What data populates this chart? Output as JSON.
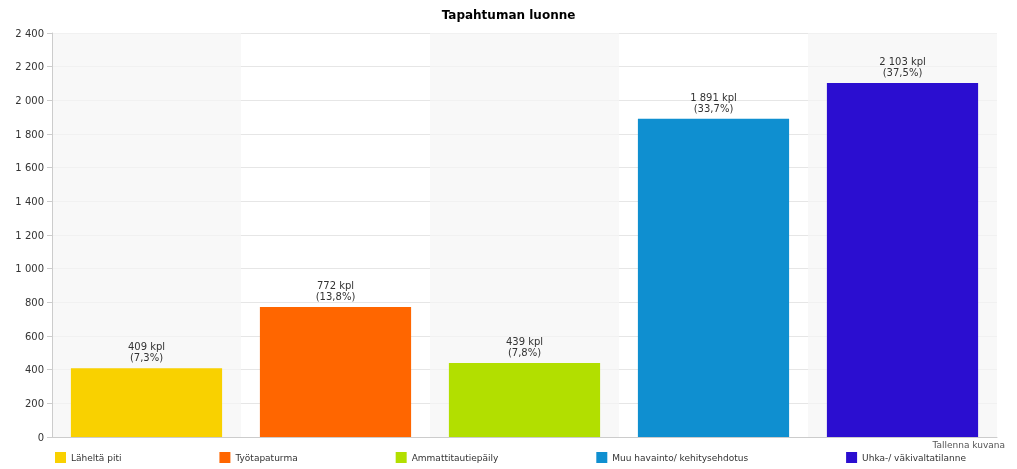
{
  "chart_data": {
    "type": "bar",
    "title": "Tapahtuman luonne",
    "categories": [
      null,
      null,
      null,
      null,
      null
    ],
    "series": [
      {
        "name": "Läheltä piti",
        "color": "#f9d100",
        "values": [
          409,
          null,
          null,
          null,
          null
        ],
        "value_labels": [
          "409 kpl\n(7,3%)",
          null,
          null,
          null,
          null
        ]
      },
      {
        "name": "Työtapaturma",
        "color": "#ff6600",
        "values": [
          null,
          772,
          null,
          null,
          null
        ],
        "value_labels": [
          null,
          "772 kpl\n(13,8%)",
          null,
          null,
          null
        ]
      },
      {
        "name": "Ammattitautiepäily",
        "color": "#b2df00",
        "values": [
          null,
          null,
          439,
          null,
          null
        ],
        "value_labels": [
          null,
          null,
          "439 kpl\n(7,8%)",
          null,
          null
        ]
      },
      {
        "name": "Muu havainto/ kehitysehdotus",
        "color": "#0f8fd0",
        "values": [
          null,
          null,
          null,
          1891,
          null
        ],
        "value_labels": [
          null,
          null,
          null,
          "1 891 kpl\n(33,7%)",
          null
        ]
      },
      {
        "name": "Uhka-/ väkivaltatilanne",
        "color": "#2b0ed0",
        "values": [
          null,
          null,
          null,
          null,
          2103
        ],
        "value_labels": [
          null,
          null,
          null,
          null,
          "2 103 kpl\n(37,5%)"
        ]
      }
    ],
    "ylim": [
      0,
      2400
    ],
    "yticks": [
      0,
      200,
      400,
      600,
      800,
      {
        "value": 1000,
        "label": "1 000"
      },
      {
        "value": 1200,
        "label": "1 200"
      },
      {
        "value": 1400,
        "label": "1 400"
      },
      {
        "value": 1600,
        "label": "1 600"
      },
      {
        "value": 1800,
        "label": "1 800"
      },
      {
        "value": 2000,
        "label": "2 000"
      },
      {
        "value": 2200,
        "label": "2 200"
      },
      {
        "value": 2400,
        "label": "2 400"
      }
    ],
    "grid": "y",
    "legend": "bottom",
    "annotations": [
      "Tallenna kuvana"
    ]
  }
}
